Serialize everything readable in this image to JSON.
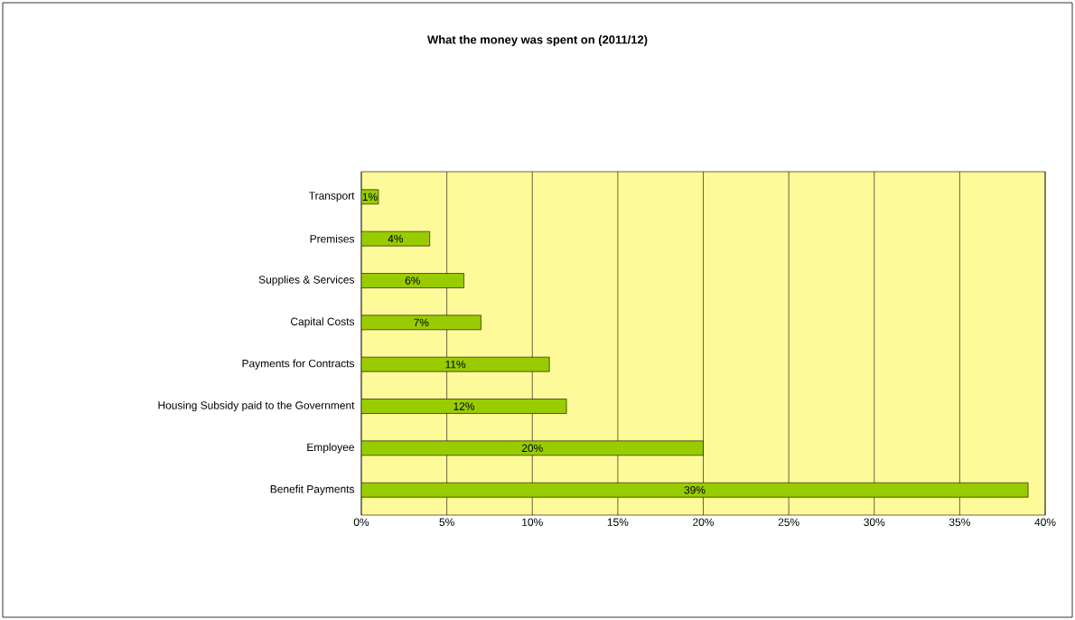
{
  "chart_data": {
    "type": "bar",
    "orientation": "horizontal",
    "title": "What the money was spent on (2011/12)",
    "categories": [
      "Transport",
      "Premises",
      "Supplies & Services",
      "Capital Costs",
      "Payments for Contracts",
      "Housing Subsidy paid to the Government",
      "Employee",
      "Benefit Payments"
    ],
    "values": [
      1,
      4,
      6,
      7,
      11,
      12,
      20,
      39
    ],
    "value_labels": [
      "1%",
      "4%",
      "6%",
      "7%",
      "11%",
      "12%",
      "20%",
      "39%"
    ],
    "color": "#99cc00",
    "xlim": [
      0,
      40
    ],
    "xticks": [
      {
        "value": 0,
        "label": "0%"
      },
      {
        "value": 5,
        "label": "5%"
      },
      {
        "value": 10,
        "label": "10%"
      },
      {
        "value": 15,
        "label": "15%"
      },
      {
        "value": 20,
        "label": "20%"
      },
      {
        "value": 25,
        "label": "25%"
      },
      {
        "value": 30,
        "label": "30%"
      },
      {
        "value": 35,
        "label": "35%"
      },
      {
        "value": 40,
        "label": "40%"
      }
    ],
    "grid": "x"
  }
}
